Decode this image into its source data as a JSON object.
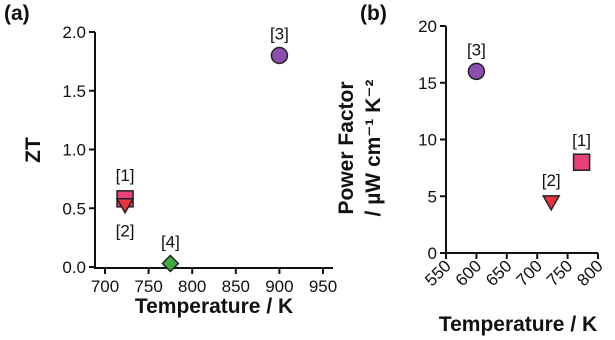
{
  "chart_data": [
    {
      "panel": "(a)",
      "type": "scatter",
      "xlabel": "Temperature / K",
      "ylabel": "ZT",
      "xlim": [
        700,
        950
      ],
      "ylim": [
        0,
        2.0
      ],
      "xticks": [
        "700",
        "750",
        "800",
        "850",
        "900",
        "950"
      ],
      "yticks": [
        "0.0",
        "0.5",
        "1.0",
        "1.5",
        "2.0"
      ],
      "grid": false,
      "points": [
        {
          "label": "[1]",
          "x": 723,
          "y": 0.58,
          "marker": "square",
          "color": "#e8417a"
        },
        {
          "label": "[2]",
          "x": 723,
          "y": 0.53,
          "marker": "triangle-down",
          "color": "#e8343a"
        },
        {
          "label": "[3]",
          "x": 900,
          "y": 1.8,
          "marker": "circle",
          "color": "#8c4fb0"
        },
        {
          "label": "[4]",
          "x": 775,
          "y": 0.03,
          "marker": "diamond",
          "color": "#3fab3f"
        }
      ]
    },
    {
      "panel": "(b)",
      "type": "scatter",
      "xlabel": "Temperature / K",
      "ylabel_line1": "Power Factor",
      "ylabel_line2": "/ µW cm⁻¹ K⁻²",
      "xlim": [
        550,
        800
      ],
      "ylim": [
        0,
        20
      ],
      "xticks": [
        "550",
        "600",
        "650",
        "700",
        "750",
        "800"
      ],
      "yticks": [
        "0",
        "5",
        "10",
        "15",
        "20"
      ],
      "grid": false,
      "points": [
        {
          "label": "[3]",
          "x": 600,
          "y": 16,
          "marker": "circle",
          "color": "#8c4fb0"
        },
        {
          "label": "[2]",
          "x": 723,
          "y": 4.5,
          "marker": "triangle-down",
          "color": "#e8343a"
        },
        {
          "label": "[1]",
          "x": 773,
          "y": 8,
          "marker": "square",
          "color": "#e8417a"
        }
      ]
    }
  ]
}
